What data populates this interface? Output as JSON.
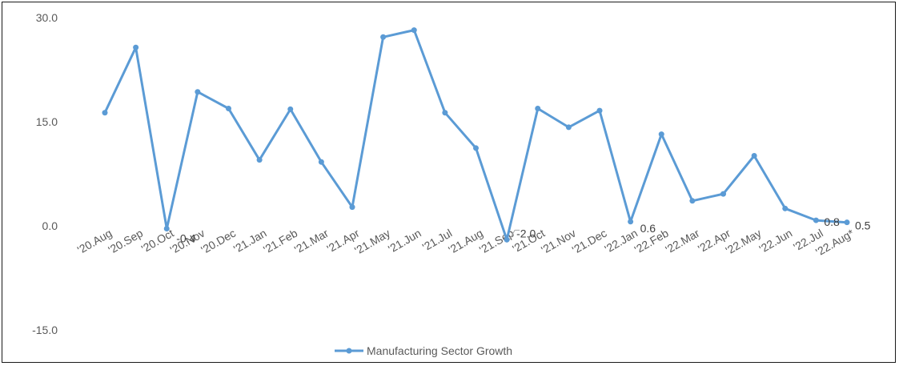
{
  "chart_data": {
    "type": "line",
    "categories": [
      "'20.Aug",
      "'20.Sep",
      "'20.Oct",
      "'20.Nov",
      "'20.Dec",
      "'21.Jan",
      "'21.Feb",
      "'21.Mar",
      "'21.Apr",
      "'21.May",
      "'21.Jun",
      "'21.Jul",
      "'21.Aug",
      "'21.Sep",
      "'21.Oct",
      "'21.Nov",
      "'21.Dec",
      "'22.Jan",
      "'22.Feb",
      "'22.Mar",
      "'22.Apr",
      "'22.May",
      "'22.Jun",
      "'22.Jul",
      "'22.Aug*"
    ],
    "series": [
      {
        "name": "Manufacturing Sector Growth",
        "values": [
          16.3,
          25.7,
          -0.4,
          19.3,
          16.9,
          9.5,
          16.8,
          9.2,
          2.7,
          27.2,
          28.2,
          16.3,
          11.2,
          -2.0,
          16.9,
          14.2,
          16.6,
          0.6,
          13.2,
          3.6,
          4.6,
          10.1,
          2.5,
          0.8,
          0.5
        ],
        "color": "#5b9bd5"
      }
    ],
    "data_labels": [
      {
        "index": 2,
        "text": "-0.4"
      },
      {
        "index": 13,
        "text": "-2.0"
      },
      {
        "index": 17,
        "text": "0.6"
      },
      {
        "index": 23,
        "text": "0.8"
      },
      {
        "index": 24,
        "text": "0.5"
      }
    ],
    "yticks": [
      "30.0",
      "15.0",
      "0.0",
      "-15.0"
    ],
    "ytick_values": [
      30,
      15,
      0,
      -15
    ],
    "ylim": [
      -15,
      30
    ],
    "grid": false,
    "legend_position": "bottom",
    "title": "",
    "xlabel": "",
    "ylabel": ""
  }
}
